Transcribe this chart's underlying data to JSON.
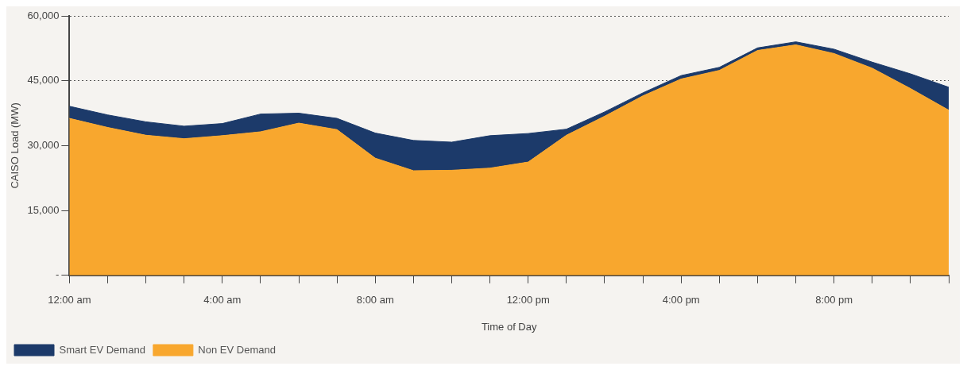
{
  "chart_data": {
    "type": "area",
    "xlabel": "Time of Day",
    "ylabel": "CAISO Load (MW)",
    "categories": [
      "12:00 am",
      null,
      null,
      null,
      "4:00 am",
      null,
      null,
      null,
      "8:00 am",
      null,
      null,
      null,
      "12:00 pm",
      null,
      null,
      null,
      "4:00 pm",
      null,
      null,
      null,
      "8:00 pm",
      null,
      null,
      null
    ],
    "series": [
      {
        "name": "Non EV Demand",
        "color": "#f8a72e",
        "values": [
          36300,
          34200,
          32400,
          31600,
          32300,
          33200,
          35200,
          33700,
          27100,
          24200,
          24300,
          24800,
          26200,
          32400,
          36800,
          41500,
          45400,
          47400,
          52000,
          53300,
          51300,
          47900,
          43200,
          38200
        ]
      },
      {
        "name": "Smart EV Demand",
        "color": "#1c3a6a",
        "values": [
          2800,
          2900,
          3100,
          2900,
          2800,
          4100,
          2300,
          2600,
          5800,
          7000,
          6500,
          7500,
          6600,
          1400,
          1000,
          700,
          800,
          700,
          600,
          700,
          1000,
          1400,
          3400,
          5300
        ]
      }
    ],
    "stacked": true,
    "ylim": [
      0,
      60000
    ],
    "yticks": [
      {
        "value": 0,
        "label": "-"
      },
      {
        "value": 15000,
        "label": "15,000"
      },
      {
        "value": 30000,
        "label": "30,000"
      },
      {
        "value": 45000,
        "label": "45,000"
      },
      {
        "value": 60000,
        "label": "60,000"
      }
    ],
    "grid": "y",
    "line_style": "dotted",
    "marker": "none",
    "legend": "bottom left"
  }
}
